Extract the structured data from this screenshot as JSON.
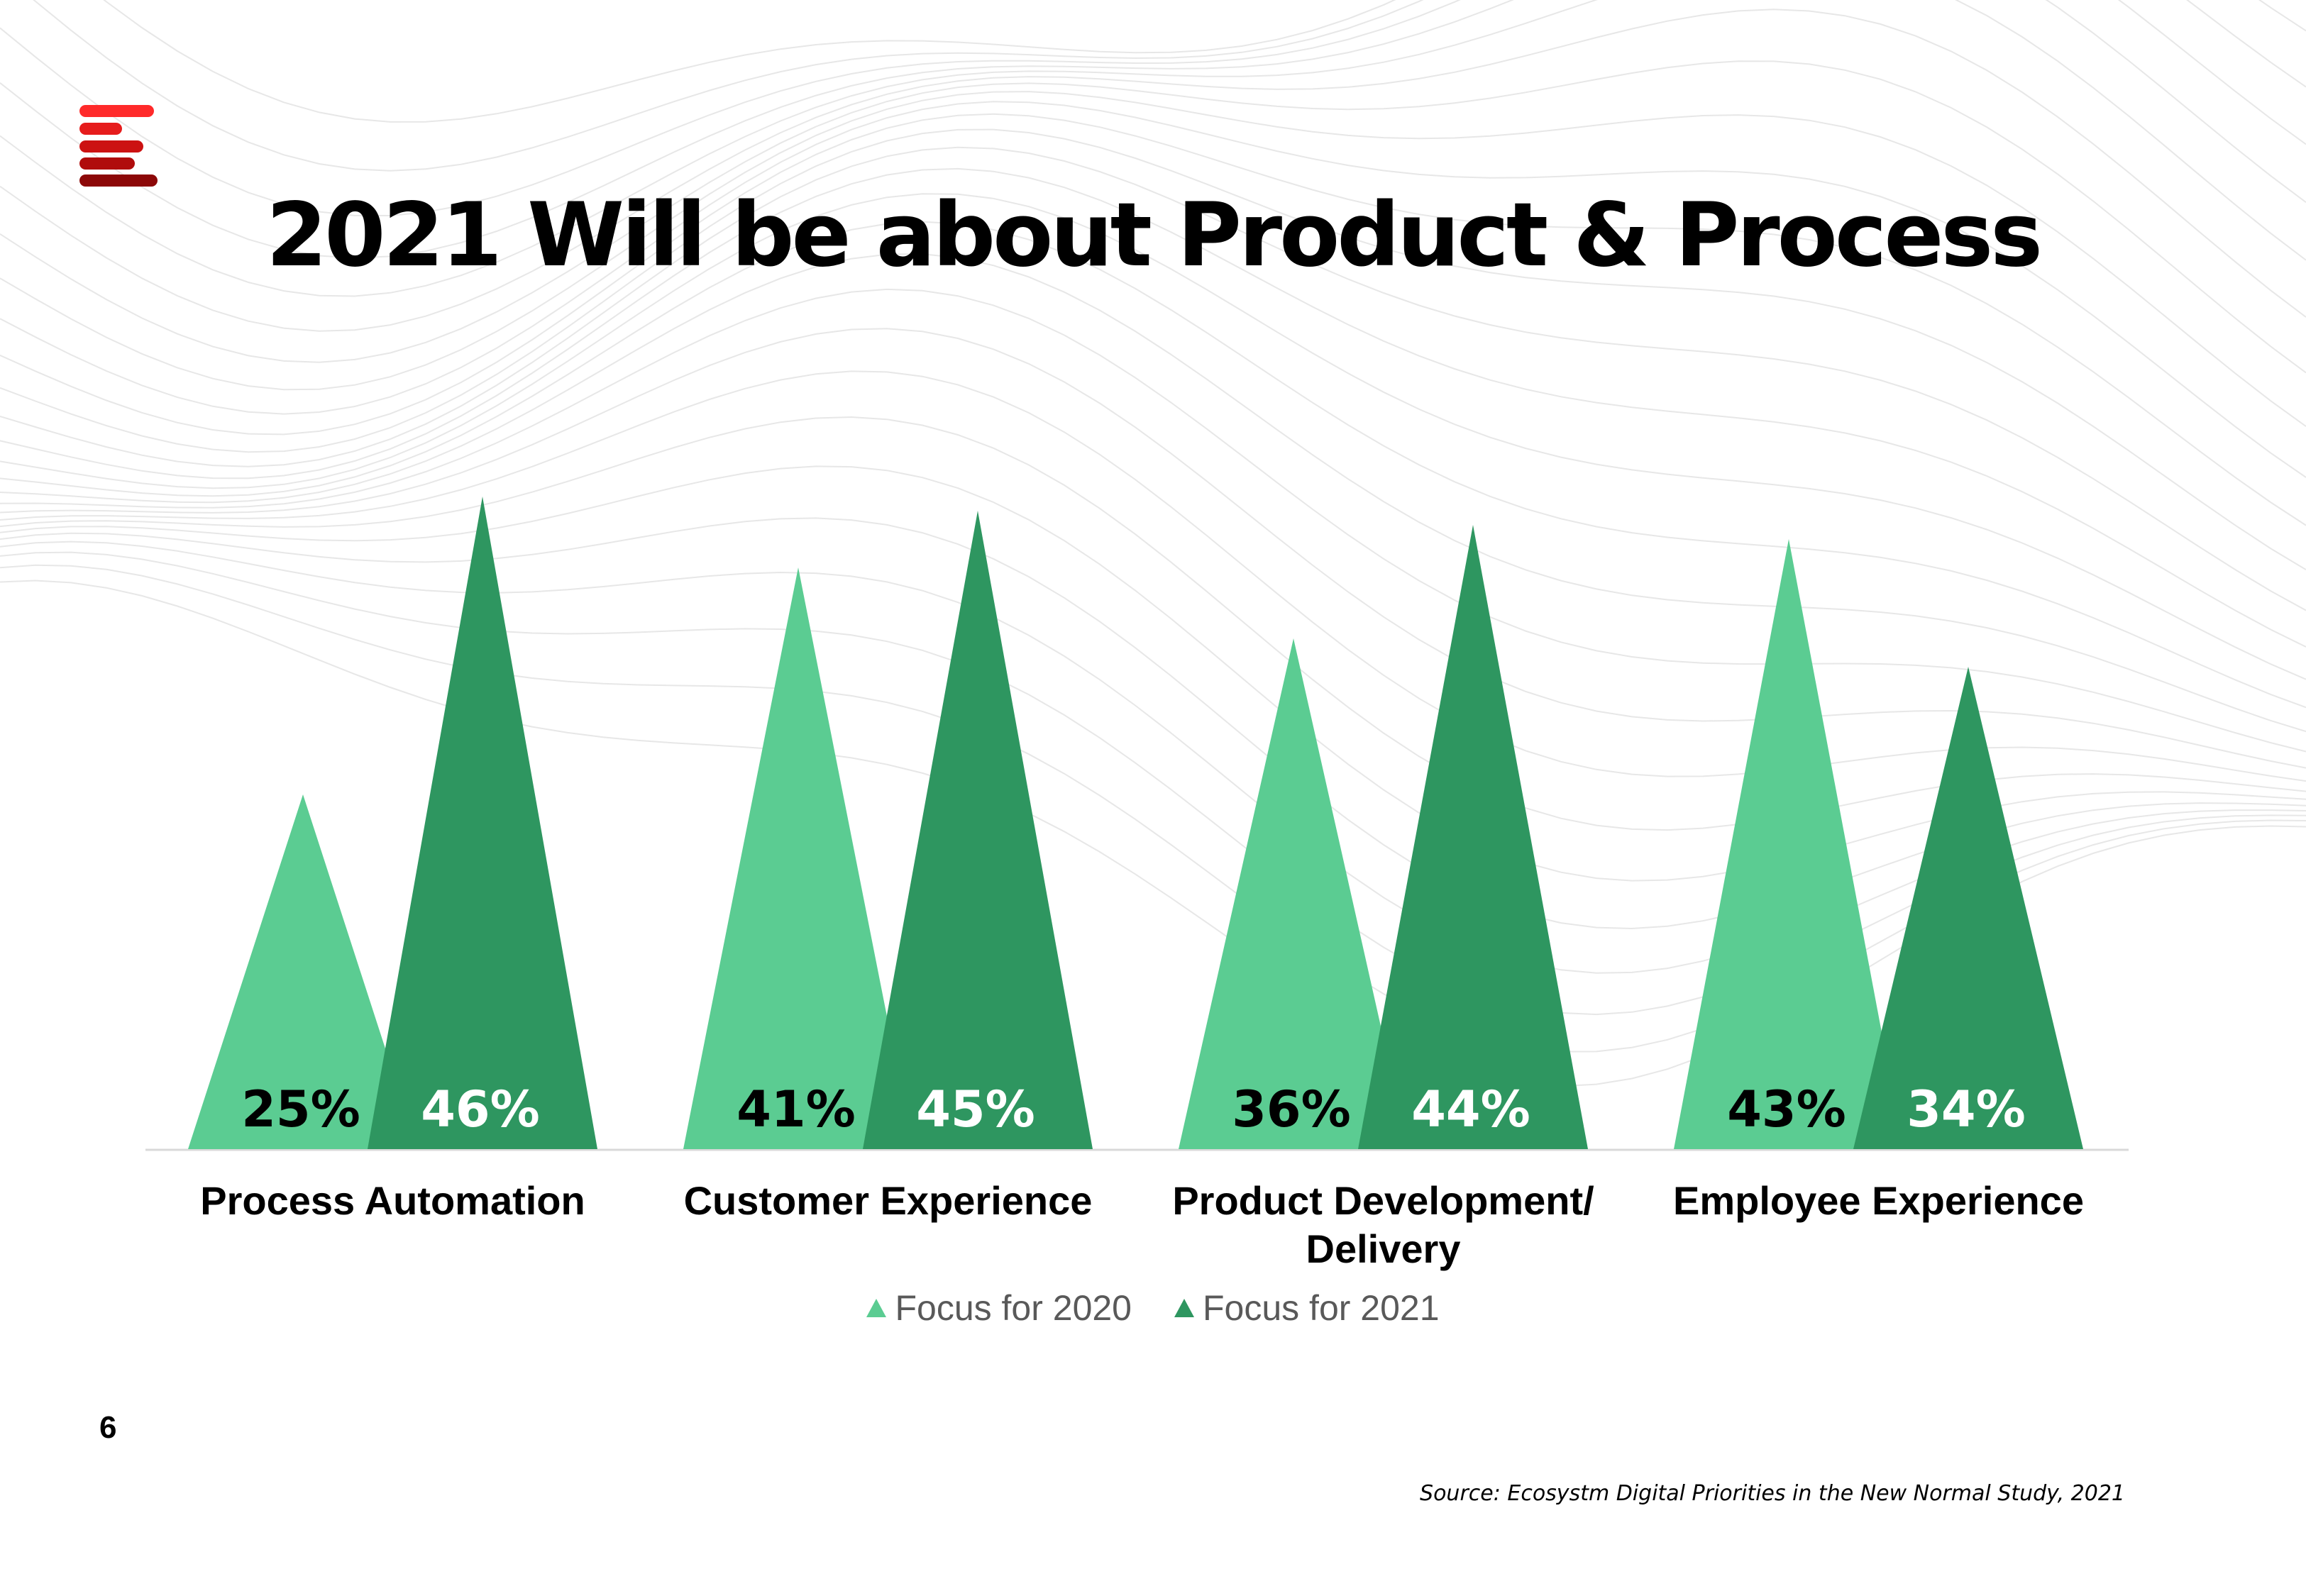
{
  "slide": {
    "title": "2021 Will be about Product & Process",
    "page_number": "6",
    "source": "Source: Ecosystm Digital Priorities in the New Normal Study, 2021"
  },
  "logo": {
    "colors": [
      "#ff2a2a",
      "#e61c1c",
      "#cc1212",
      "#b00c0c",
      "#8c0808"
    ]
  },
  "colors": {
    "series_2020": "#5bcc92",
    "series_2021": "#2e9660",
    "label_dark": "#000000",
    "label_light": "#ffffff",
    "axis": "#d9d9d9"
  },
  "chart_data": {
    "type": "bar",
    "bar_shape": "triangle",
    "categories": [
      "Process Automation",
      "Customer Experience",
      "Product Development/ Delivery",
      "Employee Experience"
    ],
    "category_lines": [
      [
        "Process Automation"
      ],
      [
        "Customer Experience"
      ],
      [
        "Product Development/",
        "Delivery"
      ],
      [
        "Employee Experience"
      ]
    ],
    "series": [
      {
        "name": "Focus for 2020",
        "values": [
          25,
          41,
          36,
          43
        ],
        "labels": [
          "25%",
          "41%",
          "36%",
          "43%"
        ]
      },
      {
        "name": "Focus for 2021",
        "values": [
          46,
          45,
          44,
          34
        ],
        "labels": [
          "46%",
          "45%",
          "44%",
          "34%"
        ]
      }
    ],
    "unit": "%",
    "ylim": [
      0,
      50
    ],
    "legend_position": "bottom",
    "grid": false
  }
}
